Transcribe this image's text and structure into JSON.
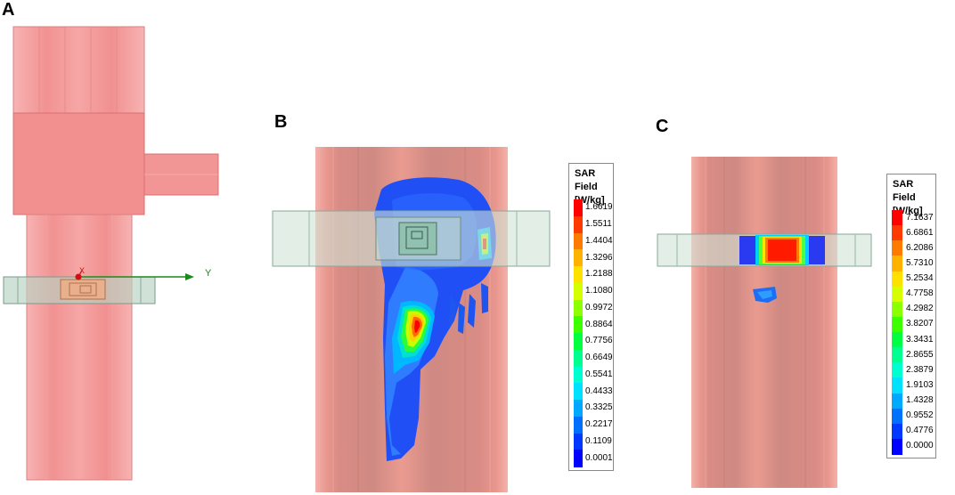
{
  "panels": [
    {
      "letter": "A",
      "axis_x_label": "X",
      "axis_y_label": "Y"
    },
    {
      "letter": "B"
    },
    {
      "letter": "C"
    }
  ],
  "legend_b": {
    "title_line1": "SAR Field",
    "title_line2": "[W/kg]",
    "values": [
      "1.6619",
      "1.5511",
      "1.4404",
      "1.3296",
      "1.2188",
      "1.1080",
      "0.9972",
      "0.8864",
      "0.7756",
      "0.6649",
      "0.5541",
      "0.4433",
      "0.3325",
      "0.2217",
      "0.1109",
      "0.0001"
    ]
  },
  "legend_c": {
    "title_line1": "SAR Field",
    "title_line2": "[W/kg]",
    "values": [
      "7.1637",
      "6.6861",
      "6.2086",
      "5.7310",
      "5.2534",
      "4.7758",
      "4.2982",
      "3.8207",
      "3.3431",
      "2.8655",
      "2.3879",
      "1.9103",
      "1.4328",
      "0.9552",
      "0.4776",
      "0.0000"
    ]
  },
  "colors": {
    "phantom": "#f4a0a0",
    "phantom_dark": "#e07b7b",
    "band": "#d3e6dc",
    "scale": [
      "#ff0000",
      "#ff3a00",
      "#ff7a00",
      "#ffb300",
      "#ffe100",
      "#d4ff00",
      "#8cff00",
      "#3cff00",
      "#00ff40",
      "#00ff90",
      "#00ffd0",
      "#00e0ff",
      "#00a8ff",
      "#0070ff",
      "#0038ff",
      "#0000ff"
    ]
  }
}
